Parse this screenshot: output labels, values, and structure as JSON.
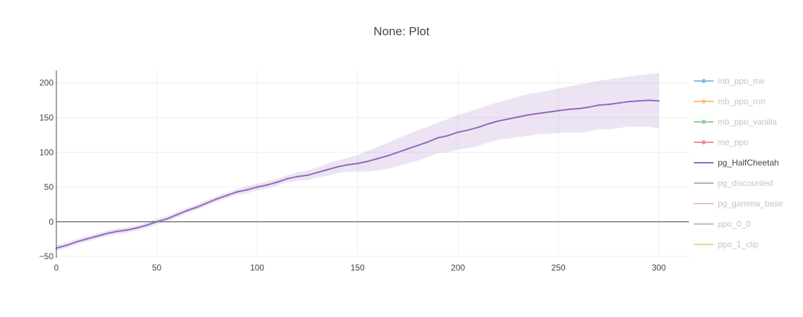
{
  "chart_data": {
    "type": "line",
    "title": "None: Plot",
    "xlabel": "",
    "ylabel": "",
    "xlim": [
      0,
      315
    ],
    "ylim": [
      -52,
      218
    ],
    "x_ticks": [
      0,
      50,
      100,
      150,
      200,
      250,
      300
    ],
    "y_ticks": [
      -50,
      0,
      50,
      100,
      150,
      200
    ],
    "grid": true,
    "legend_position": "right",
    "series": [
      {
        "name": "mb_ppo_me",
        "color": "#1f77b4",
        "marker": "circle",
        "visible": false,
        "x": [],
        "y": []
      },
      {
        "name": "mb_ppo_rnn",
        "color": "#ff7f0e",
        "marker": "circle",
        "visible": false,
        "x": [],
        "y": []
      },
      {
        "name": "mb_ppo_vanilla",
        "color": "#2ca02c",
        "marker": "circle",
        "visible": false,
        "x": [],
        "y": []
      },
      {
        "name": "me_ppo",
        "color": "#d62728",
        "marker": "circle",
        "visible": false,
        "x": [],
        "y": []
      },
      {
        "name": "pg_HalfCheetah",
        "color": "#9467bd",
        "marker": "none",
        "visible": true,
        "x": [
          0,
          5,
          10,
          15,
          20,
          25,
          30,
          35,
          40,
          45,
          50,
          55,
          60,
          65,
          70,
          75,
          80,
          85,
          90,
          95,
          100,
          105,
          110,
          115,
          120,
          125,
          130,
          135,
          140,
          145,
          150,
          155,
          160,
          165,
          170,
          175,
          180,
          185,
          190,
          195,
          200,
          205,
          210,
          215,
          220,
          225,
          230,
          235,
          240,
          245,
          250,
          255,
          260,
          265,
          270,
          275,
          280,
          285,
          290,
          295,
          300
        ],
        "y": [
          -38,
          -34,
          -29,
          -25,
          -21,
          -17,
          -14,
          -12,
          -9,
          -5,
          0,
          4,
          10,
          16,
          21,
          27,
          33,
          38,
          43,
          46,
          50,
          53,
          57,
          62,
          65,
          67,
          71,
          75,
          79,
          82,
          84,
          87,
          91,
          95,
          100,
          105,
          110,
          115,
          121,
          124,
          129,
          132,
          136,
          141,
          145,
          148,
          151,
          154,
          156,
          158,
          160,
          162,
          163,
          165,
          168,
          169,
          171,
          173,
          174,
          175,
          174
        ],
        "y_upper": [
          -34,
          -30,
          -25,
          -21,
          -17,
          -13,
          -10,
          -8,
          -5,
          -1,
          4,
          8,
          14,
          20,
          25,
          31,
          37,
          42,
          47,
          51,
          55,
          58,
          62,
          67,
          71,
          74,
          78,
          84,
          88,
          92,
          96,
          102,
          108,
          114,
          120,
          126,
          132,
          137,
          143,
          148,
          154,
          158,
          163,
          168,
          172,
          176,
          180,
          184,
          186,
          189,
          192,
          195,
          198,
          200,
          203,
          205,
          207,
          209,
          211,
          213,
          214
        ],
        "y_lower": [
          -42,
          -38,
          -33,
          -29,
          -25,
          -21,
          -18,
          -16,
          -13,
          -9,
          -4,
          0,
          6,
          12,
          17,
          23,
          29,
          34,
          39,
          41,
          45,
          48,
          52,
          57,
          59,
          60,
          64,
          66,
          70,
          72,
          72,
          72,
          74,
          76,
          80,
          84,
          88,
          93,
          99,
          100,
          104,
          106,
          109,
          114,
          118,
          120,
          122,
          124,
          126,
          127,
          128,
          129,
          128,
          130,
          133,
          133,
          135,
          137,
          137,
          137,
          134
        ]
      },
      {
        "name": "pg_discounted",
        "color": "#8c564b",
        "marker": "none",
        "visible": false,
        "x": [],
        "y": []
      },
      {
        "name": "pg_gamma_base",
        "color": "#e377c2",
        "marker": "none",
        "visible": false,
        "x": [],
        "y": []
      },
      {
        "name": "ppo_0_0",
        "color": "#7f7f7f",
        "marker": "none",
        "visible": false,
        "x": [],
        "y": []
      },
      {
        "name": "ppo_1_clip",
        "color": "#bcbd22",
        "marker": "none",
        "visible": false,
        "x": [],
        "y": []
      }
    ]
  }
}
